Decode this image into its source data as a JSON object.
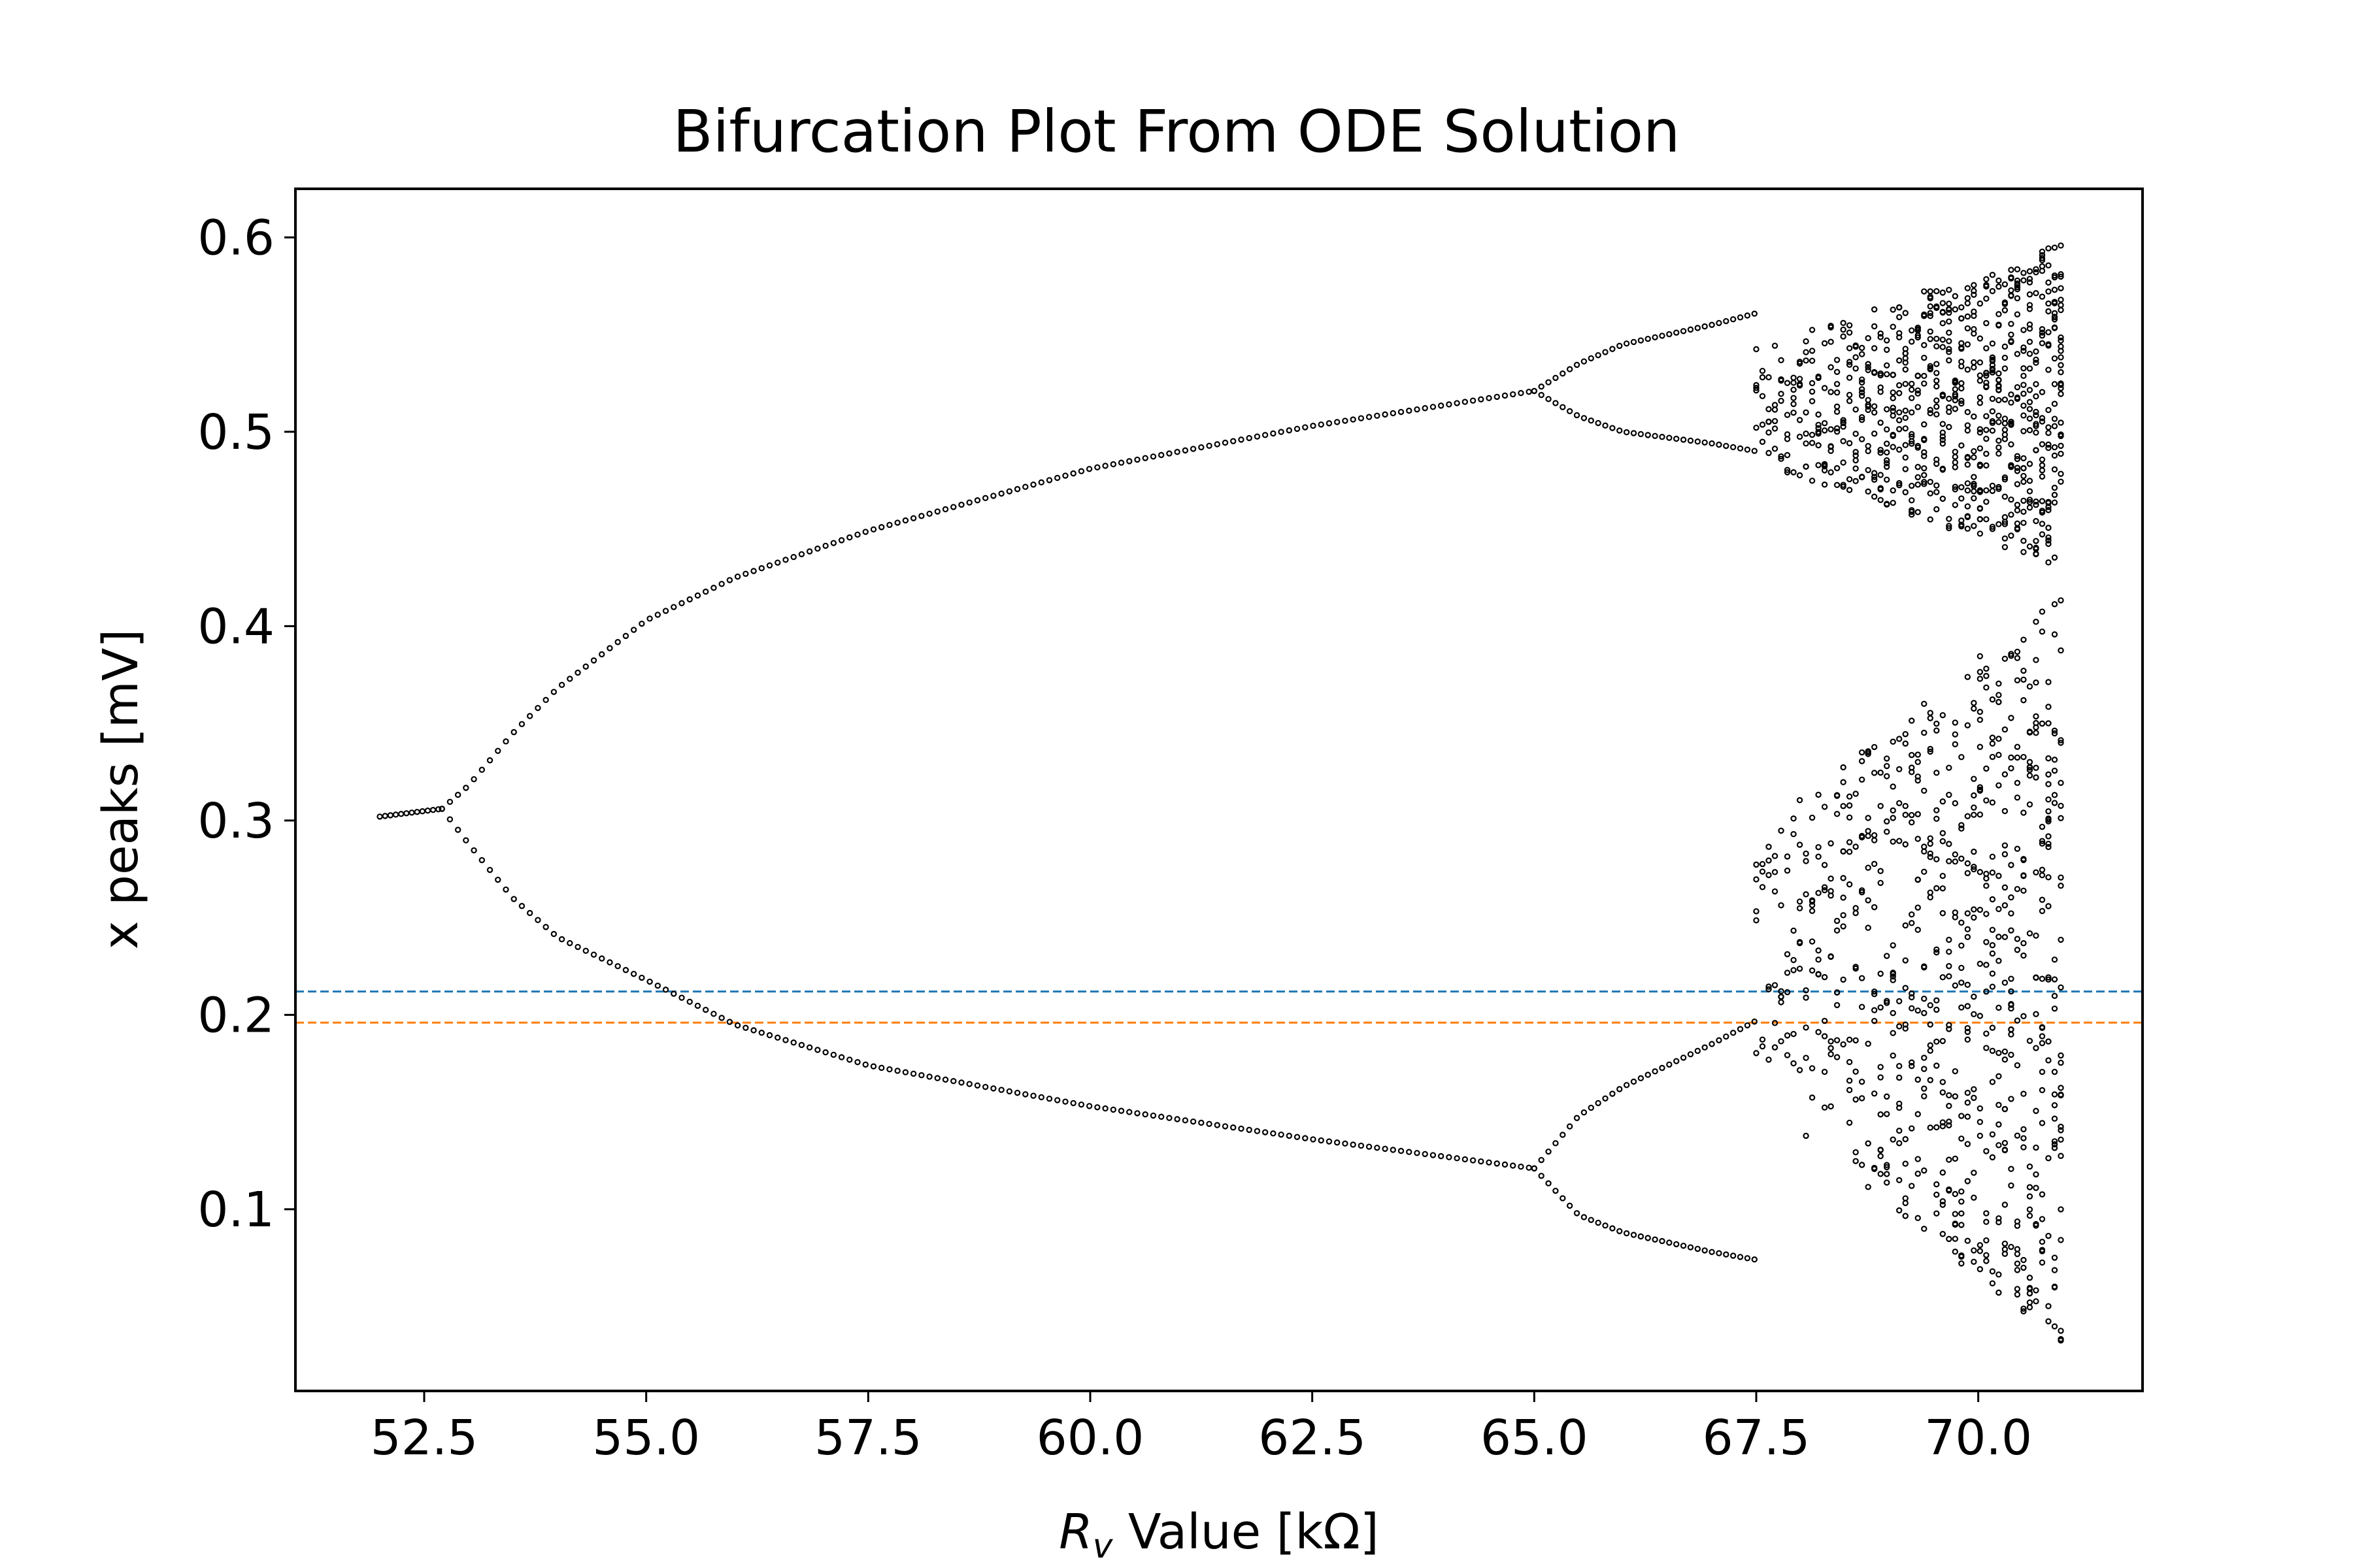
{
  "chart_data": {
    "type": "scatter",
    "title": "Bifurcation Plot From ODE Solution",
    "xlabel": {
      "symbol": "R",
      "subscript": "v",
      "rest": " Value [kΩ]"
    },
    "ylabel": "x peaks [mV]",
    "xlim": [
      51.05,
      71.85
    ],
    "ylim": [
      0.0065,
      0.625
    ],
    "xticks": [
      52.5,
      55.0,
      57.5,
      60.0,
      62.5,
      65.0,
      67.5,
      70.0
    ],
    "xtick_labels": [
      "52.5",
      "55.0",
      "57.5",
      "60.0",
      "62.5",
      "65.0",
      "67.5",
      "70.0"
    ],
    "yticks": [
      0.1,
      0.2,
      0.3,
      0.4,
      0.5,
      0.6
    ],
    "ytick_labels": [
      "0.1",
      "0.2",
      "0.3",
      "0.4",
      "0.5",
      "0.6"
    ],
    "grid": false,
    "marker_color": "#000000",
    "hlines": [
      {
        "y": 0.212,
        "color": "#1f77b4",
        "style": "dashed"
      },
      {
        "y": 0.196,
        "color": "#ff7f0e",
        "style": "dashed"
      }
    ],
    "branches": [
      {
        "segment": "fixed-point",
        "x_range": [
          52.0,
          52.7
        ],
        "y": [
          0.302,
          0.306
        ]
      },
      {
        "segment": "period-2-upper",
        "points": [
          [
            52.7,
            0.306
          ],
          [
            53.0,
            0.318
          ],
          [
            53.5,
            0.345
          ],
          [
            54.0,
            0.368
          ],
          [
            55.0,
            0.403
          ],
          [
            56.0,
            0.425
          ],
          [
            57.5,
            0.449
          ],
          [
            60.0,
            0.481
          ],
          [
            62.5,
            0.503
          ],
          [
            65.0,
            0.521
          ]
        ]
      },
      {
        "segment": "period-2-lower",
        "points": [
          [
            52.7,
            0.306
          ],
          [
            53.0,
            0.288
          ],
          [
            53.5,
            0.26
          ],
          [
            54.0,
            0.24
          ],
          [
            55.0,
            0.218
          ],
          [
            56.0,
            0.195
          ],
          [
            57.5,
            0.174
          ],
          [
            60.0,
            0.153
          ],
          [
            62.5,
            0.136
          ],
          [
            65.0,
            0.121
          ]
        ]
      },
      {
        "segment": "period-4",
        "points": [
          [
            65.0,
            0.521
          ],
          [
            65.5,
            0.535
          ],
          [
            66.0,
            0.545
          ],
          [
            67.0,
            0.555
          ],
          [
            67.5,
            0.561
          ]
        ]
      },
      {
        "segment": "period-4",
        "points": [
          [
            65.0,
            0.521
          ],
          [
            65.5,
            0.508
          ],
          [
            66.0,
            0.5
          ],
          [
            67.0,
            0.494
          ],
          [
            67.5,
            0.49
          ]
        ]
      },
      {
        "segment": "period-4",
        "points": [
          [
            65.0,
            0.121
          ],
          [
            65.5,
            0.148
          ],
          [
            66.0,
            0.163
          ],
          [
            67.0,
            0.185
          ],
          [
            67.5,
            0.197
          ]
        ]
      },
      {
        "segment": "period-4",
        "points": [
          [
            65.0,
            0.121
          ],
          [
            65.5,
            0.097
          ],
          [
            66.0,
            0.088
          ],
          [
            67.0,
            0.078
          ],
          [
            67.5,
            0.074
          ]
        ]
      },
      {
        "segment": "chaotic-bands",
        "x_range": [
          67.5,
          70.95
        ],
        "bands": [
          [
            0.43,
            0.597
          ],
          [
            0.03,
            0.42
          ]
        ]
      }
    ]
  }
}
